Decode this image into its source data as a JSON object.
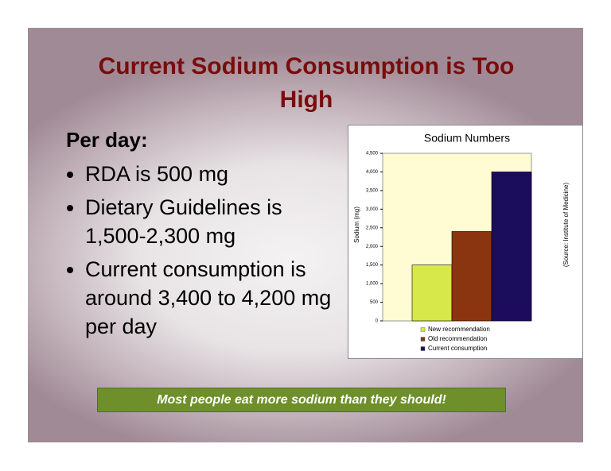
{
  "title": "Current Sodium Consumption is Too High",
  "heading": "Per day:",
  "bullets": [
    "RDA is 500 mg",
    "Dietary Guidelines is 1,500-2,300 mg",
    "Current consumption is around 3,400 to 4,200 mg per day"
  ],
  "banner": "Most people eat more sodium than they should!",
  "chart_data": {
    "type": "bar",
    "title": "Sodium Numbers",
    "y_label": "Sodium (mg)",
    "annotation": "(Source: Institute of Medicine)",
    "categories": [
      null
    ],
    "series": [
      {
        "name": "New recommendation",
        "color": "#d6e84a",
        "values": [
          1500
        ]
      },
      {
        "name": "Old recommendation",
        "color": "#8a3510",
        "values": [
          2400
        ]
      },
      {
        "name": "Current consumption",
        "color": "#1c0c5c",
        "values": [
          4000
        ]
      }
    ],
    "ylim": [
      0,
      4500
    ],
    "yticks": [
      0,
      500,
      {
        "value": 1000,
        "label": "1,000"
      },
      {
        "value": 1500,
        "label": "1,500"
      },
      {
        "value": 2000,
        "label": "2,000"
      },
      {
        "value": 2500,
        "label": "2,500"
      },
      {
        "value": 3000,
        "label": "3,000"
      },
      {
        "value": 3500,
        "label": "3,500"
      },
      {
        "value": 4000,
        "label": "4,000"
      },
      {
        "value": 4500,
        "label": "4,500"
      }
    ],
    "plot_background": "#fffbd2"
  }
}
